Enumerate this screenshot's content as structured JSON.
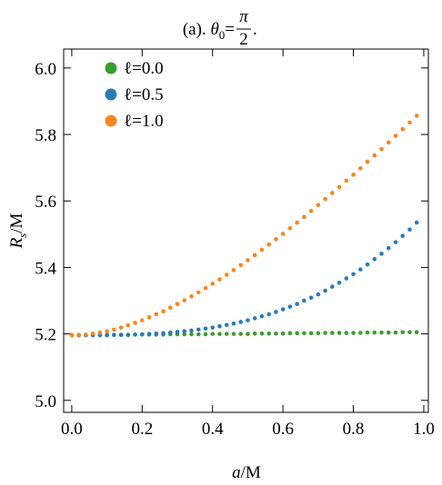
{
  "chart_data": {
    "type": "scatter",
    "title": {
      "prefix": "(a). ",
      "symbol": "θ",
      "sub": "0",
      "eq": "=",
      "num": "π",
      "den": "2",
      "end": "."
    },
    "xlabel": {
      "var": "a",
      "rest": "/M"
    },
    "ylabel": {
      "var": "R",
      "sub": "s",
      "rest": "/M"
    },
    "xlim": [
      -0.023,
      1.013
    ],
    "ylim": [
      4.964,
      6.057
    ],
    "xticks": [
      {
        "value": 0,
        "label": "0.0"
      },
      0.2,
      0.4,
      0.6,
      0.8,
      {
        "value": 1,
        "label": "1.0"
      }
    ],
    "yticks": [
      {
        "value": 5,
        "label": "5.0"
      },
      5.2,
      5.4,
      5.6,
      5.8,
      {
        "value": 6,
        "label": "6.0"
      }
    ],
    "legend": "upper left",
    "x": [
      0,
      0.02,
      0.04,
      0.06,
      0.08,
      0.1,
      0.12,
      0.14,
      0.16,
      0.18,
      0.2,
      0.22,
      0.24,
      0.26,
      0.28,
      0.3,
      0.32,
      0.34,
      0.36,
      0.38,
      0.4,
      0.42,
      0.44,
      0.46,
      0.48,
      0.5,
      0.52,
      0.54,
      0.56,
      0.58,
      0.6,
      0.62,
      0.64,
      0.66,
      0.68,
      0.7,
      0.72,
      0.74,
      0.76,
      0.78,
      0.8,
      0.82,
      0.84,
      0.86,
      0.88,
      0.9,
      0.92,
      0.94,
      0.96,
      0.98
    ],
    "series": [
      {
        "name": "ℓ=0.0",
        "color": "#3b9d2f",
        "values": [
          5.196,
          5.196,
          5.196,
          5.197,
          5.197,
          5.197,
          5.197,
          5.197,
          5.197,
          5.198,
          5.198,
          5.198,
          5.198,
          5.198,
          5.199,
          5.199,
          5.199,
          5.199,
          5.199,
          5.199,
          5.2,
          5.2,
          5.2,
          5.2,
          5.2,
          5.2,
          5.201,
          5.201,
          5.201,
          5.201,
          5.201,
          5.202,
          5.202,
          5.202,
          5.202,
          5.202,
          5.203,
          5.203,
          5.203,
          5.203,
          5.203,
          5.203,
          5.204,
          5.204,
          5.204,
          5.204,
          5.204,
          5.205,
          5.205,
          5.205
        ]
      },
      {
        "name": "ℓ=0.5",
        "color": "#2b7bb5",
        "values": [
          5.196,
          5.196,
          5.196,
          5.196,
          5.196,
          5.196,
          5.197,
          5.197,
          5.197,
          5.198,
          5.199,
          5.2,
          5.201,
          5.202,
          5.204,
          5.206,
          5.208,
          5.21,
          5.213,
          5.216,
          5.219,
          5.223,
          5.227,
          5.231,
          5.236,
          5.241,
          5.247,
          5.253,
          5.259,
          5.266,
          5.274,
          5.282,
          5.29,
          5.3,
          5.309,
          5.319,
          5.33,
          5.342,
          5.354,
          5.367,
          5.38,
          5.394,
          5.409,
          5.425,
          5.441,
          5.458,
          5.476,
          5.495,
          5.514,
          5.535
        ]
      },
      {
        "name": "ℓ=1.0",
        "color": "#f7861f",
        "values": [
          5.196,
          5.197,
          5.198,
          5.201,
          5.204,
          5.208,
          5.213,
          5.219,
          5.226,
          5.233,
          5.241,
          5.25,
          5.259,
          5.268,
          5.279,
          5.29,
          5.301,
          5.313,
          5.325,
          5.338,
          5.351,
          5.364,
          5.378,
          5.392,
          5.407,
          5.422,
          5.437,
          5.453,
          5.469,
          5.485,
          5.501,
          5.518,
          5.535,
          5.552,
          5.57,
          5.588,
          5.606,
          5.624,
          5.642,
          5.661,
          5.679,
          5.698,
          5.718,
          5.737,
          5.756,
          5.776,
          5.796,
          5.816,
          5.836,
          5.856
        ]
      }
    ]
  }
}
